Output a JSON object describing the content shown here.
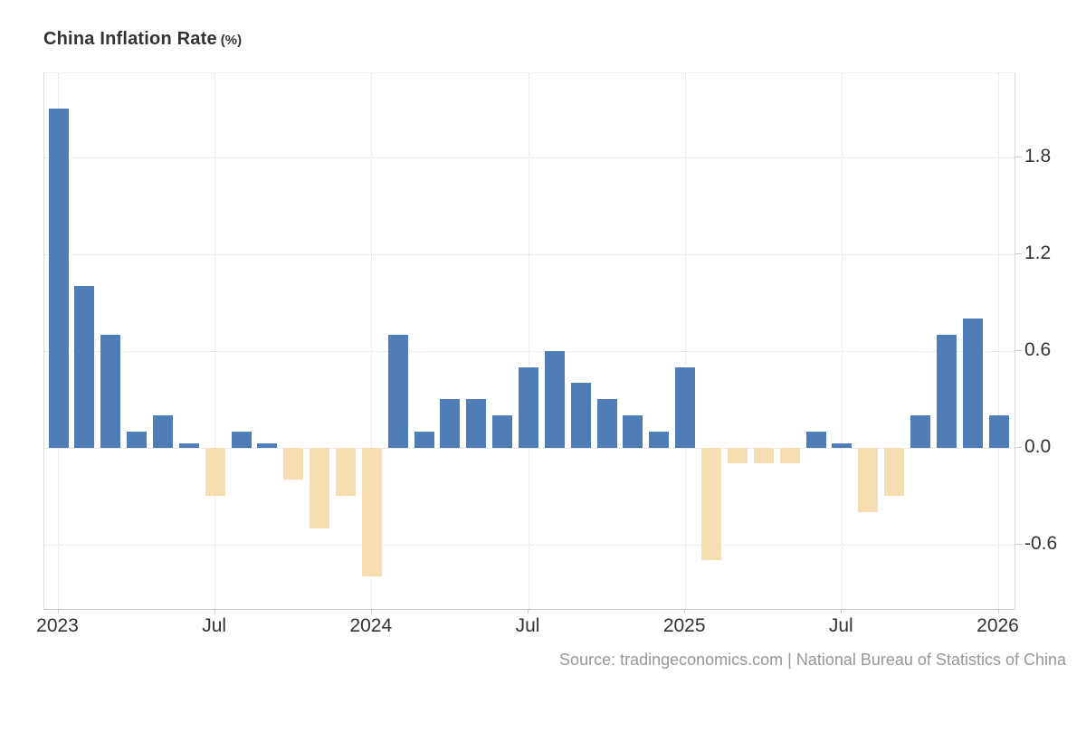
{
  "title": {
    "main": "China Inflation Rate",
    "unit": "(%)"
  },
  "source": "Source: tradingeconomics.com | National Bureau of Statistics of China",
  "colors": {
    "positive_bar": "#4e7db8",
    "negative_bar": "#f4deb2",
    "gridline": "#dedede",
    "axis_text": "#333333",
    "source_text": "#979797",
    "border": "#d9d9d9"
  },
  "chart_data": {
    "type": "bar",
    "title": "China Inflation Rate (%)",
    "xlabel": "",
    "ylabel": "",
    "grid": true,
    "legend": "none",
    "y_axis_side": "right",
    "ylim": [
      -1.0,
      2.32
    ],
    "y_ticks": [
      1.8,
      1.2,
      0.6,
      0.0,
      -0.6
    ],
    "y_tick_labels": [
      "1.8",
      "1.2",
      "0.6",
      "0.0",
      "-0.6"
    ],
    "x": [
      "Jan 2023",
      "Feb 2023",
      "Mar 2023",
      "Apr 2023",
      "May 2023",
      "Jun 2023",
      "Jul 2023",
      "Aug 2023",
      "Sep 2023",
      "Oct 2023",
      "Nov 2023",
      "Dec 2023",
      "Jan 2024",
      "Feb 2024",
      "Mar 2024",
      "Apr 2024",
      "May 2024",
      "Jun 2024",
      "Jul 2024",
      "Aug 2024",
      "Sep 2024",
      "Oct 2024",
      "Nov 2024",
      "Dec 2024",
      "Jan 2025",
      "Feb 2025",
      "Mar 2025",
      "Apr 2025",
      "May 2025",
      "Jun 2025",
      "Jul 2025",
      "Aug 2025",
      "Sep 2025",
      "Oct 2025",
      "Nov 2025",
      "Dec 2025",
      "Jan 2026"
    ],
    "values": [
      2.1,
      1.0,
      0.7,
      0.1,
      0.2,
      0.0,
      -0.3,
      0.1,
      0.0,
      -0.2,
      -0.5,
      -0.3,
      -0.8,
      0.7,
      0.1,
      0.3,
      0.3,
      0.2,
      0.5,
      0.6,
      0.4,
      0.3,
      0.2,
      0.1,
      0.5,
      -0.7,
      -0.1,
      -0.1,
      -0.1,
      0.1,
      0.0,
      -0.4,
      -0.3,
      0.2,
      0.7,
      0.8,
      0.2
    ],
    "x_axis_ticks": [
      {
        "index": 0,
        "label": "2023"
      },
      {
        "index": 6,
        "label": "Jul"
      },
      {
        "index": 12,
        "label": "2024"
      },
      {
        "index": 18,
        "label": "Jul"
      },
      {
        "index": 24,
        "label": "2025"
      },
      {
        "index": 30,
        "label": "Jul"
      },
      {
        "index": 36,
        "label": "2026"
      }
    ],
    "series_name": "China Inflation Rate (%)",
    "positive_color": "#4e7db8",
    "negative_color": "#f4deb2"
  }
}
